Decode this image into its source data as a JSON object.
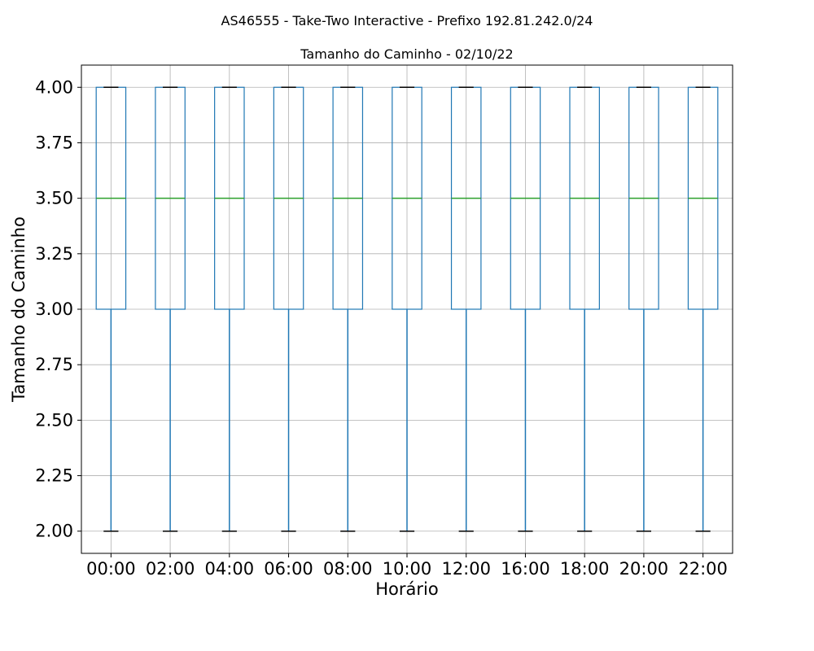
{
  "chart_data": {
    "type": "box",
    "suptitle": "AS46555 - Take-Two Interactive - Prefixo 192.81.242.0/24",
    "title": "Tamanho do Caminho - 02/10/22",
    "xlabel": "Horário",
    "ylabel": "Tamanho do Caminho",
    "ylim": [
      1.9,
      4.1
    ],
    "yticks": [
      "2.00",
      "2.25",
      "2.50",
      "2.75",
      "3.00",
      "3.25",
      "3.50",
      "3.75",
      "4.00"
    ],
    "grid": true,
    "categories": [
      "00:00",
      "02:00",
      "04:00",
      "06:00",
      "08:00",
      "10:00",
      "12:00",
      "16:00",
      "18:00",
      "20:00",
      "22:00"
    ],
    "boxes": [
      {
        "whislo": 2,
        "q1": 3,
        "med": 3.5,
        "q3": 4,
        "whishi": 4
      },
      {
        "whislo": 2,
        "q1": 3,
        "med": 3.5,
        "q3": 4,
        "whishi": 4
      },
      {
        "whislo": 2,
        "q1": 3,
        "med": 3.5,
        "q3": 4,
        "whishi": 4
      },
      {
        "whislo": 2,
        "q1": 3,
        "med": 3.5,
        "q3": 4,
        "whishi": 4
      },
      {
        "whislo": 2,
        "q1": 3,
        "med": 3.5,
        "q3": 4,
        "whishi": 4
      },
      {
        "whislo": 2,
        "q1": 3,
        "med": 3.5,
        "q3": 4,
        "whishi": 4
      },
      {
        "whislo": 2,
        "q1": 3,
        "med": 3.5,
        "q3": 4,
        "whishi": 4
      },
      {
        "whislo": 2,
        "q1": 3,
        "med": 3.5,
        "q3": 4,
        "whishi": 4
      },
      {
        "whislo": 2,
        "q1": 3,
        "med": 3.5,
        "q3": 4,
        "whishi": 4
      },
      {
        "whislo": 2,
        "q1": 3,
        "med": 3.5,
        "q3": 4,
        "whishi": 4
      },
      {
        "whislo": 2,
        "q1": 3,
        "med": 3.5,
        "q3": 4,
        "whishi": 4
      }
    ],
    "colors": {
      "box": "#1f77b4",
      "median": "#2ca02c",
      "cap": "#000000",
      "grid": "#b0b0b0"
    }
  }
}
